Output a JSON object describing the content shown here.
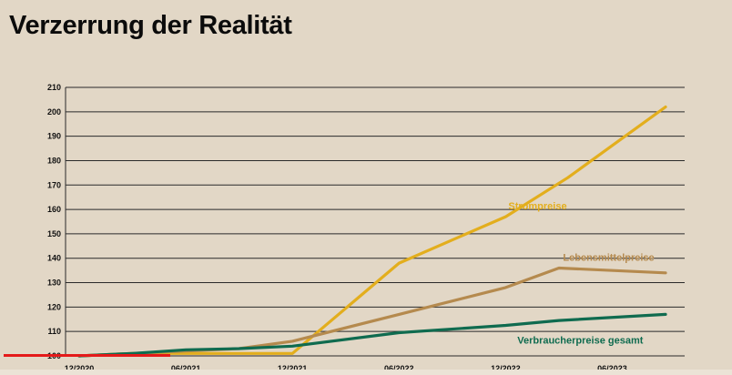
{
  "title": "Verzerrung der Realität",
  "colors": {
    "background": "#e2d7c6",
    "grid": "#2a2a2a",
    "strompreise": "#e3ae1d",
    "lebensmittelpreise": "#b58a4e",
    "verbraucherpreise": "#0f6b4f",
    "progress": "#e41a1a"
  },
  "chart_data": {
    "type": "line",
    "title": "Verzerrung der Realität",
    "xlabel": "",
    "ylabel": "",
    "ylim": [
      100,
      210
    ],
    "yticks": [
      210,
      200,
      190,
      180,
      170,
      160,
      150,
      140,
      130,
      120,
      110,
      100
    ],
    "x_tick_labels": [
      "12/2020",
      "06/2021",
      "12/2021",
      "06/2022",
      "12/2022",
      "06/2023"
    ],
    "x_tick_months": [
      0,
      6,
      12,
      18,
      24,
      30
    ],
    "x_domain_months": [
      0,
      33
    ],
    "grid": true,
    "series": [
      {
        "name": "Strompreise",
        "color_key": "strompreise",
        "label_at": [
          25.8,
          160
        ],
        "points": [
          [
            0,
            100
          ],
          [
            3,
            101
          ],
          [
            6,
            101
          ],
          [
            9,
            101
          ],
          [
            12,
            101
          ],
          [
            18,
            138
          ],
          [
            24,
            157
          ],
          [
            27.5,
            173
          ],
          [
            33,
            202
          ]
        ]
      },
      {
        "name": "Lebensmittelpreise",
        "color_key": "lebensmittelpreise",
        "label_at": [
          29.8,
          139
        ],
        "points": [
          [
            0,
            100
          ],
          [
            3,
            101
          ],
          [
            6,
            102
          ],
          [
            9,
            103
          ],
          [
            12,
            106
          ],
          [
            18,
            117
          ],
          [
            24,
            128
          ],
          [
            27,
            136
          ],
          [
            33,
            134
          ]
        ]
      },
      {
        "name": "Verbraucherpreise gesamt",
        "color_key": "verbraucherpreise",
        "label_at": [
          28.2,
          105
        ],
        "points": [
          [
            0,
            100
          ],
          [
            3,
            101
          ],
          [
            6,
            102.5
          ],
          [
            9,
            103
          ],
          [
            12,
            104
          ],
          [
            18,
            109.5
          ],
          [
            24,
            112.5
          ],
          [
            27,
            114.5
          ],
          [
            33,
            117
          ]
        ]
      }
    ]
  },
  "video_progress": 0.23
}
